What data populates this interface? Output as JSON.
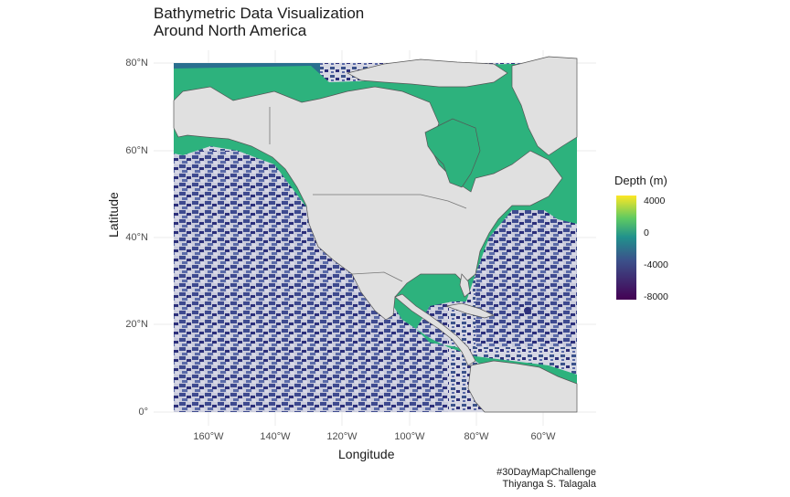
{
  "title": {
    "line1": "Bathymetric Data Visualization",
    "line2": "Around North America"
  },
  "axes": {
    "ylabel": "Latitude",
    "xlabel": "Longitude",
    "yticks": [
      "80°N",
      "60°N",
      "40°N",
      "20°N",
      "0°"
    ],
    "xticks": [
      "160°W",
      "140°W",
      "120°W",
      "100°W",
      "80°W",
      "60°W"
    ]
  },
  "legend": {
    "title": "Depth (m)",
    "ticks": [
      "4000",
      "0",
      "-4000",
      "-8000"
    ],
    "colors": [
      "#fde725",
      "#5ec962",
      "#21918c",
      "#3b528b",
      "#440154"
    ]
  },
  "caption": {
    "line1": "#30DayMapChallenge",
    "line2": "Thiyanga S. Talagala"
  },
  "colors": {
    "land": "#e0e0e0",
    "shelf": "#2db27d",
    "deep": "#3b528b",
    "deepest": "#2c2f7a",
    "panel_grid": "#ebebeb"
  }
}
